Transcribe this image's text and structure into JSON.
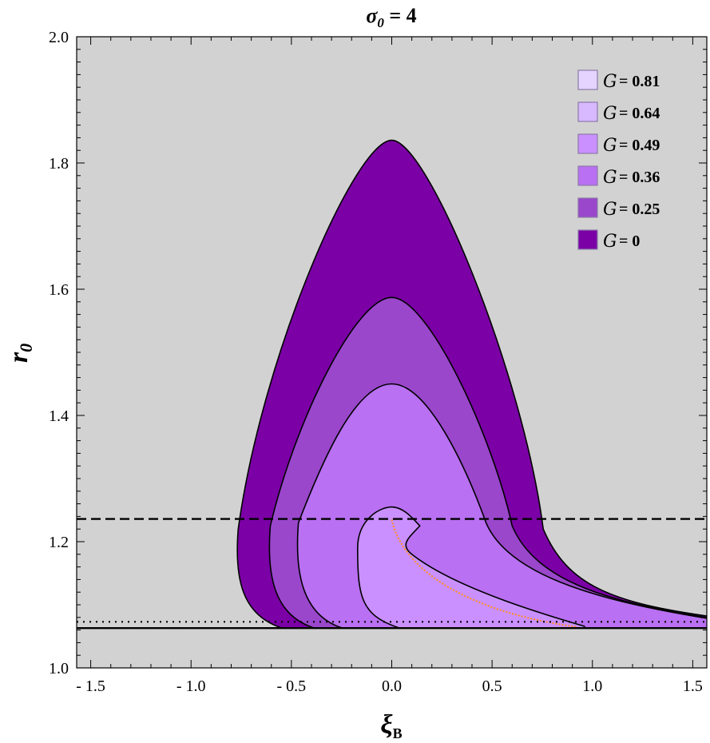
{
  "chart_data": {
    "type": "area",
    "title": "σ₀ = 4",
    "title_main": "σ",
    "title_sub": "0",
    "title_rest": " = 4",
    "xlabel_main": "ξ",
    "xlabel_sub": "B",
    "ylabel_main": "r",
    "ylabel_sub": "0",
    "xlim": [
      -1.57,
      1.57
    ],
    "ylim": [
      1.0,
      2.0
    ],
    "x_ticks": [
      -1.5,
      -1.0,
      -0.5,
      0.0,
      0.5,
      1.0,
      1.5
    ],
    "x_tick_labels": [
      "- 1.5",
      "- 1.0",
      "- 0.5",
      "0.0",
      "0.5",
      "1.0",
      "1.5"
    ],
    "y_ticks": [
      1.0,
      1.2,
      1.4,
      1.6,
      1.8,
      2.0
    ],
    "y_tick_labels": [
      "1.0",
      "1.2",
      "1.4",
      "1.6",
      "1.8",
      "2.0"
    ],
    "background_color": "#d2d2d2",
    "legend_position": "top-right",
    "legend_symbol": "G",
    "series": [
      {
        "name": "0",
        "label": "= 0",
        "color": "#7b00a6",
        "peak_r": 1.836,
        "left_xi": -0.765,
        "right_xi": 0.755,
        "knee_r": 1.22
      },
      {
        "name": "0.25",
        "label": "= 0.25",
        "color": "#9a47cc",
        "peak_r": 1.587,
        "left_xi": -0.605,
        "right_xi": 0.6,
        "knee_r": 1.225
      },
      {
        "name": "0.36",
        "label": "= 0.36",
        "color": "#b970f2",
        "peak_r": 1.45,
        "left_xi": -0.465,
        "right_xi": 0.47,
        "knee_r": 1.23
      },
      {
        "name": "0.49",
        "label": "= 0.49",
        "color": "#ca90ff",
        "peak_r": 1.255,
        "left_xi": -0.17,
        "right_xi": 0.15,
        "knee_r": 1.19
      },
      {
        "name": "0.64",
        "label": "= 0.64",
        "color": "#d8b8ff",
        "peak_r": null
      },
      {
        "name": "0.81",
        "label": "= 0.81",
        "color": "#e4d4ff",
        "peak_r": null
      }
    ],
    "reference_lines": [
      {
        "style": "dashed",
        "y": 1.236
      },
      {
        "style": "dotted",
        "y": 1.073
      },
      {
        "style": "solid",
        "y": 1.063
      }
    ],
    "orange_curve": {
      "color": "#ff8c1a",
      "start": [
        0.0,
        1.235
      ],
      "end": [
        0.92,
        1.065
      ]
    }
  }
}
